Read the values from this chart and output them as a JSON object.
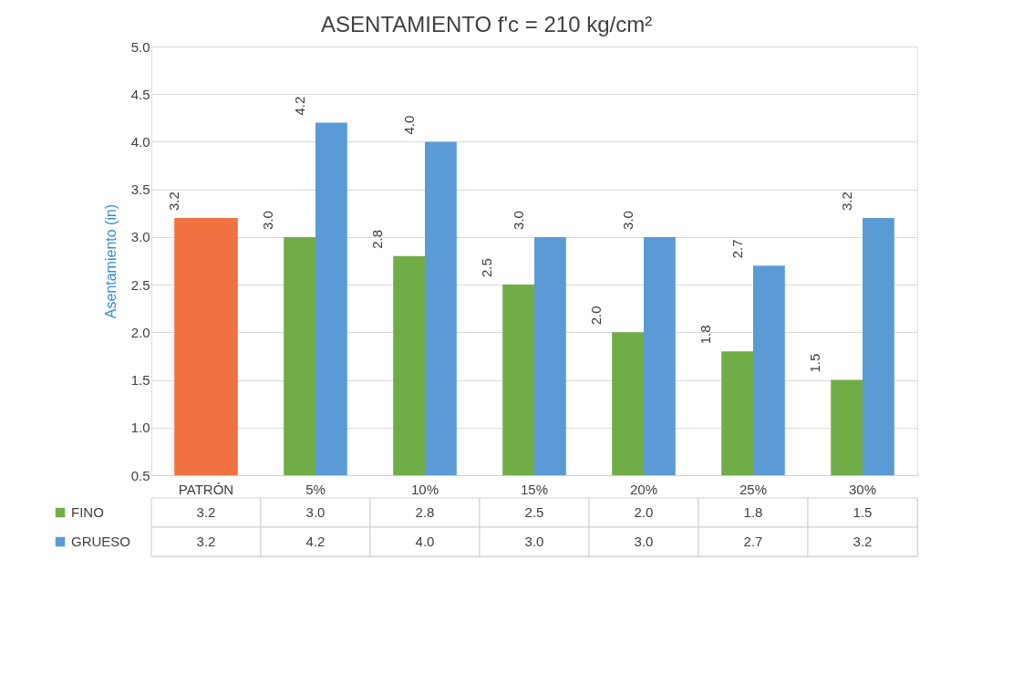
{
  "chart_data": {
    "type": "bar",
    "title": "ASENTAMIENTO f'c = 210 kg/cm²",
    "ylabel": "Asentamiento (in)",
    "categories": [
      "PATRÓN",
      "5%",
      "10%",
      "15%",
      "20%",
      "25%",
      "30%"
    ],
    "series": [
      {
        "name": "FINO",
        "color": "#70ad47",
        "colors": [
          "#f07241",
          "#70ad47",
          "#70ad47",
          "#70ad47",
          "#70ad47",
          "#70ad47",
          "#70ad47"
        ],
        "values": [
          3.2,
          3.0,
          2.8,
          2.5,
          2.0,
          1.8,
          1.5
        ],
        "value_labels": [
          "3.2",
          "3.0",
          "2.8",
          "2.5",
          "2.0",
          "1.8",
          "1.5"
        ]
      },
      {
        "name": "GRUESO",
        "color": "#5b9bd5",
        "colors": [
          "#f07241",
          "#5b9bd5",
          "#5b9bd5",
          "#5b9bd5",
          "#5b9bd5",
          "#5b9bd5",
          "#5b9bd5"
        ],
        "values": [
          3.2,
          4.2,
          4.0,
          3.0,
          3.0,
          2.7,
          3.2
        ],
        "value_labels": [
          "3.2",
          "4.2",
          "4.0",
          "3.0",
          "3.0",
          "2.7",
          "3.2"
        ]
      }
    ],
    "ylim": [
      0.5,
      5.0
    ],
    "yticks": [
      0.5,
      {
        "value": 1,
        "label": "1.0"
      },
      1.5,
      {
        "value": 2,
        "label": "2.0"
      },
      2.5,
      {
        "value": 3,
        "label": "3.0"
      },
      3.5,
      {
        "value": 4,
        "label": "4.0"
      },
      4.5,
      {
        "value": 5,
        "label": "5.0"
      }
    ],
    "grid": "y",
    "legend": "bottom left"
  }
}
